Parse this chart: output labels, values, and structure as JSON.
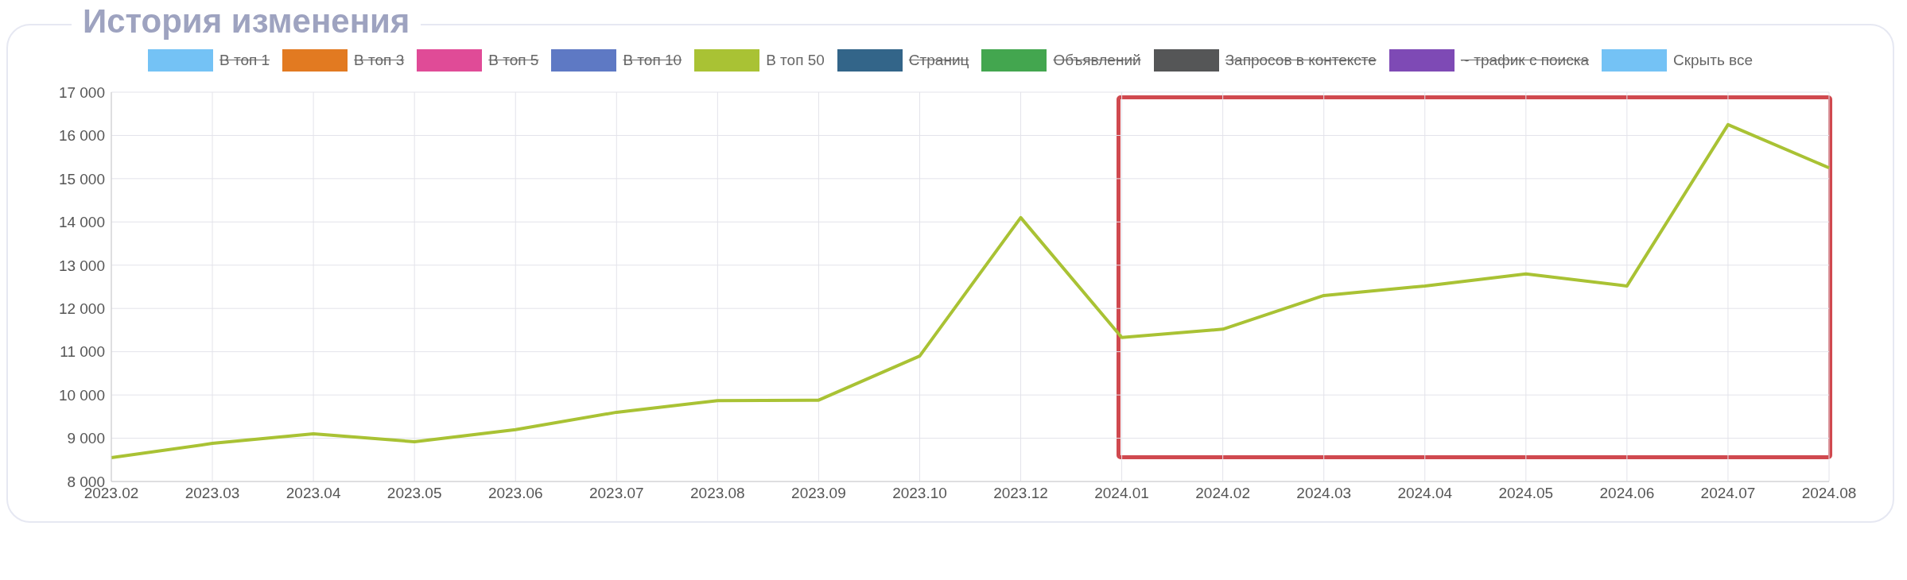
{
  "chart_data": {
    "type": "line",
    "title": "История изменения",
    "categories": [
      "2023.02",
      "2023.03",
      "2023.04",
      "2023.05",
      "2023.06",
      "2023.07",
      "2023.08",
      "2023.09",
      "2023.10",
      "2023.12",
      "2024.01",
      "2024.02",
      "2024.03",
      "2024.04",
      "2024.05",
      "2024.06",
      "2024.07",
      "2024.08"
    ],
    "series": [
      {
        "name": "В топ 1",
        "color": "#74c2f5",
        "values": [
          null,
          null,
          null,
          null,
          null,
          null,
          null,
          null,
          null,
          null,
          null,
          null,
          null,
          null,
          null,
          null,
          null,
          null
        ]
      },
      {
        "name": "В топ 3",
        "color": "#e27a21",
        "values": [
          null,
          null,
          null,
          null,
          null,
          null,
          null,
          null,
          null,
          null,
          null,
          null,
          null,
          null,
          null,
          null,
          null,
          null
        ]
      },
      {
        "name": "В топ 5",
        "color": "#e04b97",
        "values": [
          null,
          null,
          null,
          null,
          null,
          null,
          null,
          null,
          null,
          null,
          null,
          null,
          null,
          null,
          null,
          null,
          null,
          null
        ]
      },
      {
        "name": "В топ 10",
        "color": "#5e79c4",
        "values": [
          null,
          null,
          null,
          null,
          null,
          null,
          null,
          null,
          null,
          null,
          null,
          null,
          null,
          null,
          null,
          null,
          null,
          null
        ]
      },
      {
        "name": "В топ 50",
        "color": "#a9c234",
        "values": [
          8550,
          8880,
          9100,
          8920,
          9200,
          9600,
          9870,
          9880,
          10900,
          14100,
          11330,
          11520,
          12300,
          12520,
          12800,
          12520,
          16250,
          15250
        ]
      },
      {
        "name": "Страниц",
        "color": "#336589",
        "values": [
          null,
          null,
          null,
          null,
          null,
          null,
          null,
          null,
          null,
          null,
          null,
          null,
          null,
          null,
          null,
          null,
          null,
          null
        ]
      },
      {
        "name": "Объявлений",
        "color": "#43a64f",
        "values": [
          null,
          null,
          null,
          null,
          null,
          null,
          null,
          null,
          null,
          null,
          null,
          null,
          null,
          null,
          null,
          null,
          null,
          null
        ]
      },
      {
        "name": "Запросов в контексте",
        "color": "#555657",
        "values": [
          null,
          null,
          null,
          null,
          null,
          null,
          null,
          null,
          null,
          null,
          null,
          null,
          null,
          null,
          null,
          null,
          null,
          null
        ]
      },
      {
        "name": "~ трафик с поиска",
        "color": "#7e4ab5",
        "values": [
          null,
          null,
          null,
          null,
          null,
          null,
          null,
          null,
          null,
          null,
          null,
          null,
          null,
          null,
          null,
          null,
          null,
          null
        ]
      }
    ],
    "annotations": [
      "Скрыть все"
    ],
    "ylim": [
      8000,
      17000
    ],
    "yticks": [
      {
        "value": 8000,
        "label": "8 000"
      },
      {
        "value": 9000,
        "label": "9 000"
      },
      {
        "value": 10000,
        "label": "10 000"
      },
      {
        "value": 11000,
        "label": "11 000"
      },
      {
        "value": 12000,
        "label": "12 000"
      },
      {
        "value": 13000,
        "label": "13 000"
      },
      {
        "value": 14000,
        "label": "14 000"
      },
      {
        "value": 15000,
        "label": "15 000"
      },
      {
        "value": 16000,
        "label": "16 000"
      },
      {
        "value": 17000,
        "label": "17 000"
      }
    ],
    "grid": true,
    "legend": "top",
    "line_style": "solid",
    "marker": "none"
  }
}
